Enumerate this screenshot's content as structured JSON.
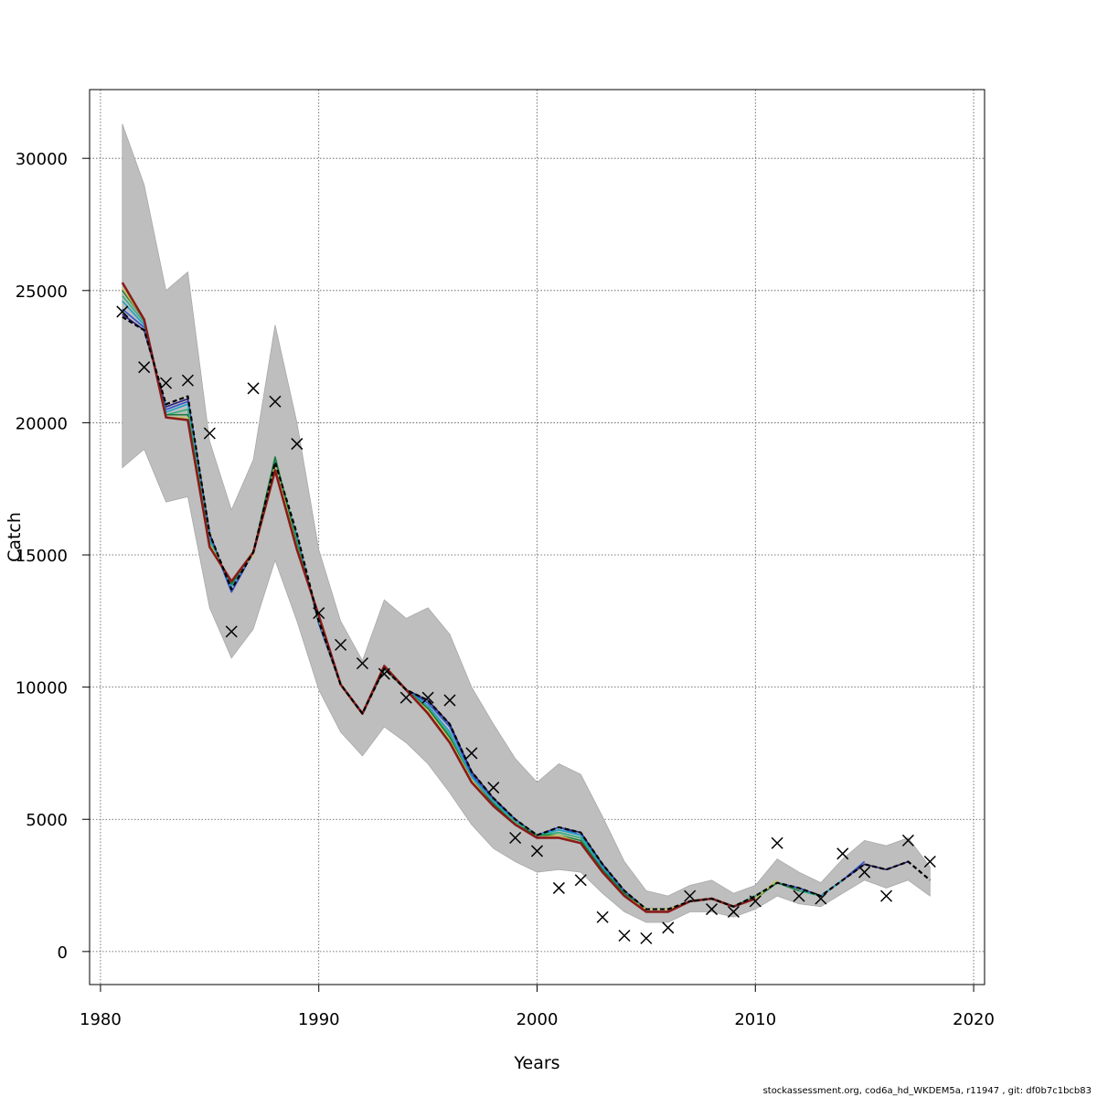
{
  "chart_data": {
    "type": "line",
    "title": "",
    "xlabel": "Years",
    "ylabel": "Catch",
    "xlim": [
      1979.5,
      2020.5
    ],
    "ylim": [
      -1250,
      32600
    ],
    "x_ticks": [
      1980,
      1990,
      2000,
      2010,
      2020
    ],
    "y_ticks": [
      0,
      5000,
      10000,
      15000,
      20000,
      25000,
      30000
    ],
    "grid": true,
    "legend": "none",
    "footer": "stockassessment.org, cod6a_hd_WKDEM5a, r11947 , git: df0b7c1bcb83",
    "colors": {
      "band": "#bebebe",
      "band_stroke": "#a8a8a8",
      "grid": "#555555",
      "main_line": "#000000",
      "observation": "#000000",
      "retro": [
        "#2d1b7a",
        "#2f52c7",
        "#1ea0c8",
        "#2fb07a",
        "#1c7a3a",
        "#c8c45a",
        "#8a1a1a"
      ]
    },
    "confidence_band": {
      "years": [
        1981,
        1982,
        1983,
        1984,
        1985,
        1986,
        1987,
        1988,
        1989,
        1990,
        1991,
        1992,
        1993,
        1994,
        1995,
        1996,
        1997,
        1998,
        1999,
        2000,
        2001,
        2002,
        2003,
        2004,
        2005,
        2006,
        2007,
        2008,
        2009,
        2010,
        2011,
        2012,
        2013,
        2014,
        2015,
        2016,
        2017,
        2018
      ],
      "upper": [
        31300,
        29000,
        25000,
        25700,
        19300,
        16700,
        18600,
        23700,
        20000,
        15200,
        12500,
        11000,
        13300,
        12600,
        13000,
        12000,
        10000,
        8600,
        7300,
        6400,
        7100,
        6700,
        5100,
        3400,
        2300,
        2100,
        2500,
        2700,
        2200,
        2500,
        3500,
        3000,
        2600,
        3500,
        4200,
        4000,
        4300,
        3200
      ],
      "lower": [
        18300,
        19000,
        17000,
        17200,
        13000,
        11100,
        12200,
        14800,
        12500,
        9900,
        8300,
        7400,
        8500,
        7900,
        7100,
        6000,
        4800,
        3900,
        3400,
        3000,
        3100,
        3000,
        2200,
        1500,
        1100,
        1100,
        1500,
        1500,
        1300,
        1600,
        2100,
        1800,
        1700,
        2200,
        2700,
        2400,
        2700,
        2100
      ]
    },
    "estimated_catch": {
      "years": [
        1981,
        1982,
        1983,
        1984,
        1985,
        1986,
        1987,
        1988,
        1989,
        1990,
        1991,
        1992,
        1993,
        1994,
        1995,
        1996,
        1997,
        1998,
        1999,
        2000,
        2001,
        2002,
        2003,
        2004,
        2005,
        2006,
        2007,
        2008,
        2009,
        2010,
        2011,
        2012,
        2013,
        2014,
        2015,
        2016,
        2017,
        2018
      ],
      "values": [
        24000,
        23500,
        20700,
        21000,
        15800,
        13700,
        15100,
        18500,
        15800,
        12500,
        10100,
        9000,
        10700,
        9900,
        9500,
        8600,
        6800,
        5800,
        5000,
        4400,
        4700,
        4500,
        3300,
        2300,
        1600,
        1600,
        1900,
        2000,
        1700,
        2100,
        2600,
        2400,
        2100,
        2700,
        3300,
        3100,
        3400,
        2700
      ]
    },
    "series": [
      {
        "values": [
          24100,
          23500,
          20600,
          20900,
          15800,
          13600,
          15100,
          18400,
          15700,
          12400,
          10100,
          9000,
          10700,
          9900,
          9500,
          8600,
          6800,
          5800,
          5000,
          4400,
          4700,
          4500,
          3300,
          2300,
          1600,
          1600,
          1900,
          2000,
          1700,
          2100,
          2600,
          2400,
          2100,
          2700,
          3300,
          3100,
          3400
        ]
      },
      {
        "values": [
          24300,
          23600,
          20500,
          20800,
          15700,
          13600,
          15100,
          18400,
          15700,
          12400,
          10100,
          9000,
          10700,
          9900,
          9400,
          8500,
          6700,
          5700,
          5000,
          4400,
          4700,
          4400,
          3200,
          2300,
          1600,
          1600,
          1900,
          2000,
          1700,
          2100,
          2600,
          2400,
          2100,
          2700,
          3400
        ]
      },
      {
        "values": [
          24600,
          23700,
          20400,
          20700,
          15600,
          13800,
          15100,
          18600,
          15600,
          12500,
          10100,
          9000,
          10700,
          9900,
          9300,
          8300,
          6600,
          5700,
          4900,
          4400,
          4600,
          4400,
          3200,
          2200,
          1600,
          1600,
          1900,
          2000,
          1700,
          2100,
          2600,
          2300,
          2100,
          2700
        ]
      },
      {
        "values": [
          24800,
          23800,
          20300,
          20500,
          15500,
          13900,
          15100,
          18700,
          15500,
          12500,
          10100,
          9000,
          10700,
          9900,
          9200,
          8200,
          6500,
          5600,
          4900,
          4400,
          4500,
          4300,
          3100,
          2200,
          1600,
          1600,
          1900,
          2000,
          1700,
          2100,
          2600,
          2300,
          2100
        ]
      },
      {
        "values": [
          25000,
          23900,
          20300,
          20300,
          15400,
          13900,
          15100,
          18700,
          15400,
          12600,
          10100,
          9000,
          10700,
          9900,
          9200,
          8100,
          6500,
          5600,
          4800,
          4400,
          4400,
          4200,
          3100,
          2200,
          1600,
          1600,
          1900,
          2000,
          1700,
          2000,
          2600,
          2300
        ]
      },
      {
        "values": [
          25100,
          23900,
          20200,
          20200,
          15400,
          14000,
          15000,
          18400,
          15300,
          12600,
          10100,
          9000,
          10800,
          9900,
          9100,
          8000,
          6500,
          5500,
          4800,
          4300,
          4400,
          4100,
          3000,
          2100,
          1600,
          1600,
          1900,
          2000,
          1700,
          2000,
          2700
        ]
      },
      {
        "values": [
          25300,
          23900,
          20200,
          20100,
          15300,
          14000,
          15100,
          18200,
          15200,
          12700,
          10100,
          9000,
          10800,
          9900,
          9000,
          7900,
          6400,
          5500,
          4800,
          4300,
          4300,
          4100,
          3000,
          2100,
          1500,
          1500,
          1900,
          2000,
          1700,
          2000
        ]
      }
    ],
    "observations": {
      "years": [
        1981,
        1982,
        1983,
        1984,
        1985,
        1986,
        1987,
        1988,
        1989,
        1990,
        1991,
        1992,
        1993,
        1994,
        1995,
        1996,
        1997,
        1998,
        1999,
        2000,
        2001,
        2002,
        2003,
        2004,
        2005,
        2006,
        2007,
        2008,
        2009,
        2010,
        2011,
        2012,
        2013,
        2014,
        2015,
        2016,
        2017,
        2018
      ],
      "values": [
        24200,
        22100,
        21500,
        21600,
        19600,
        12100,
        21300,
        20800,
        19200,
        12800,
        11600,
        10900,
        10500,
        9600,
        9600,
        9500,
        7500,
        6200,
        4300,
        3800,
        2400,
        2700,
        1300,
        600,
        500,
        900,
        2100,
        1600,
        1500,
        1900,
        4100,
        2100,
        2000,
        3700,
        3000,
        2100,
        4200,
        3400
      ]
    }
  }
}
